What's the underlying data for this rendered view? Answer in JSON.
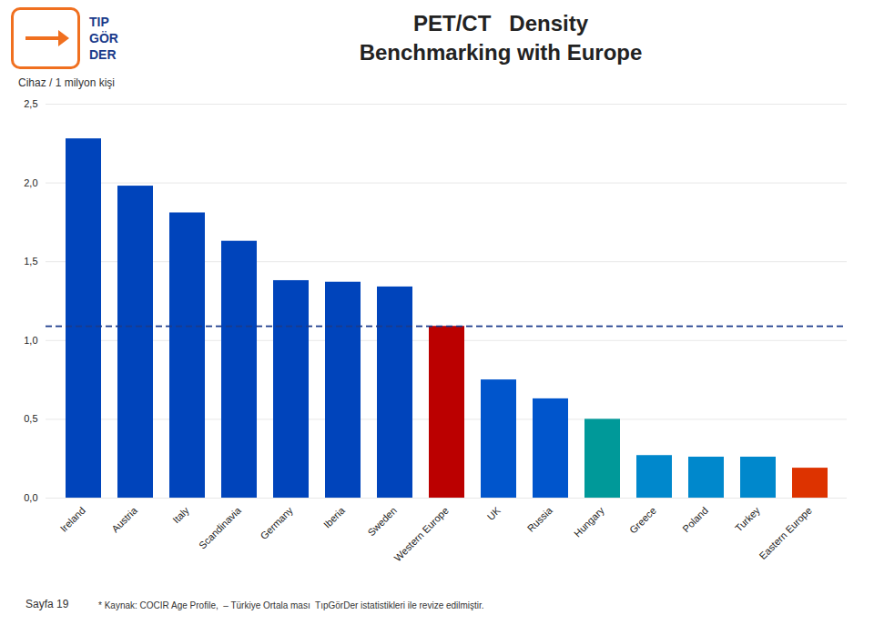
{
  "chart_data": {
    "type": "bar",
    "title": "PET/CT   Density",
    "subtitle": "Benchmarking with Europe",
    "ylabel": "Cihaz / 1 milyon kişi",
    "categories": [
      "Ireland",
      "Austria",
      "Italy",
      "Scandinavia",
      "Germany",
      "Iberia",
      "Sweden",
      "Western Europe",
      "UK",
      "Russia",
      "Hungary",
      "Greece",
      "Poland",
      "Turkey",
      "Eastern Europe"
    ],
    "values": [
      2.28,
      1.98,
      1.81,
      1.63,
      1.38,
      1.37,
      1.34,
      1.09,
      0.75,
      0.63,
      0.5,
      0.27,
      0.26,
      0.26,
      0.19
    ],
    "colors": [
      "#0044BB",
      "#0044BB",
      "#0044BB",
      "#0044BB",
      "#0044BB",
      "#0044BB",
      "#0044BB",
      "#BB0000",
      "#0055CC",
      "#0055CC",
      "#009999",
      "#0088CC",
      "#0088CC",
      "#0088CC",
      "#DD3300"
    ],
    "ylim": [
      0,
      2.5
    ],
    "yticks": [
      {
        "value": 0.0,
        "label": "0,0"
      },
      {
        "value": 0.5,
        "label": "0,5"
      },
      {
        "value": 1.0,
        "label": "1,0"
      },
      {
        "value": 1.5,
        "label": "1,5"
      },
      {
        "value": 2.0,
        "label": "2,0"
      },
      {
        "value": 2.5,
        "label": "2,5"
      }
    ],
    "grid": true,
    "reference_line": {
      "value": 1.09,
      "color": "#1A3A8A",
      "line_style": "dashed"
    },
    "annotations": [
      "TIP",
      "GÖR",
      "DER",
      "* Kaynak: COCIR Age Profile,  – Türkiye Ortala ması  TıpGörDer istatistikleri ile revize edilmiştir.",
      "Sayfa 19"
    ]
  }
}
